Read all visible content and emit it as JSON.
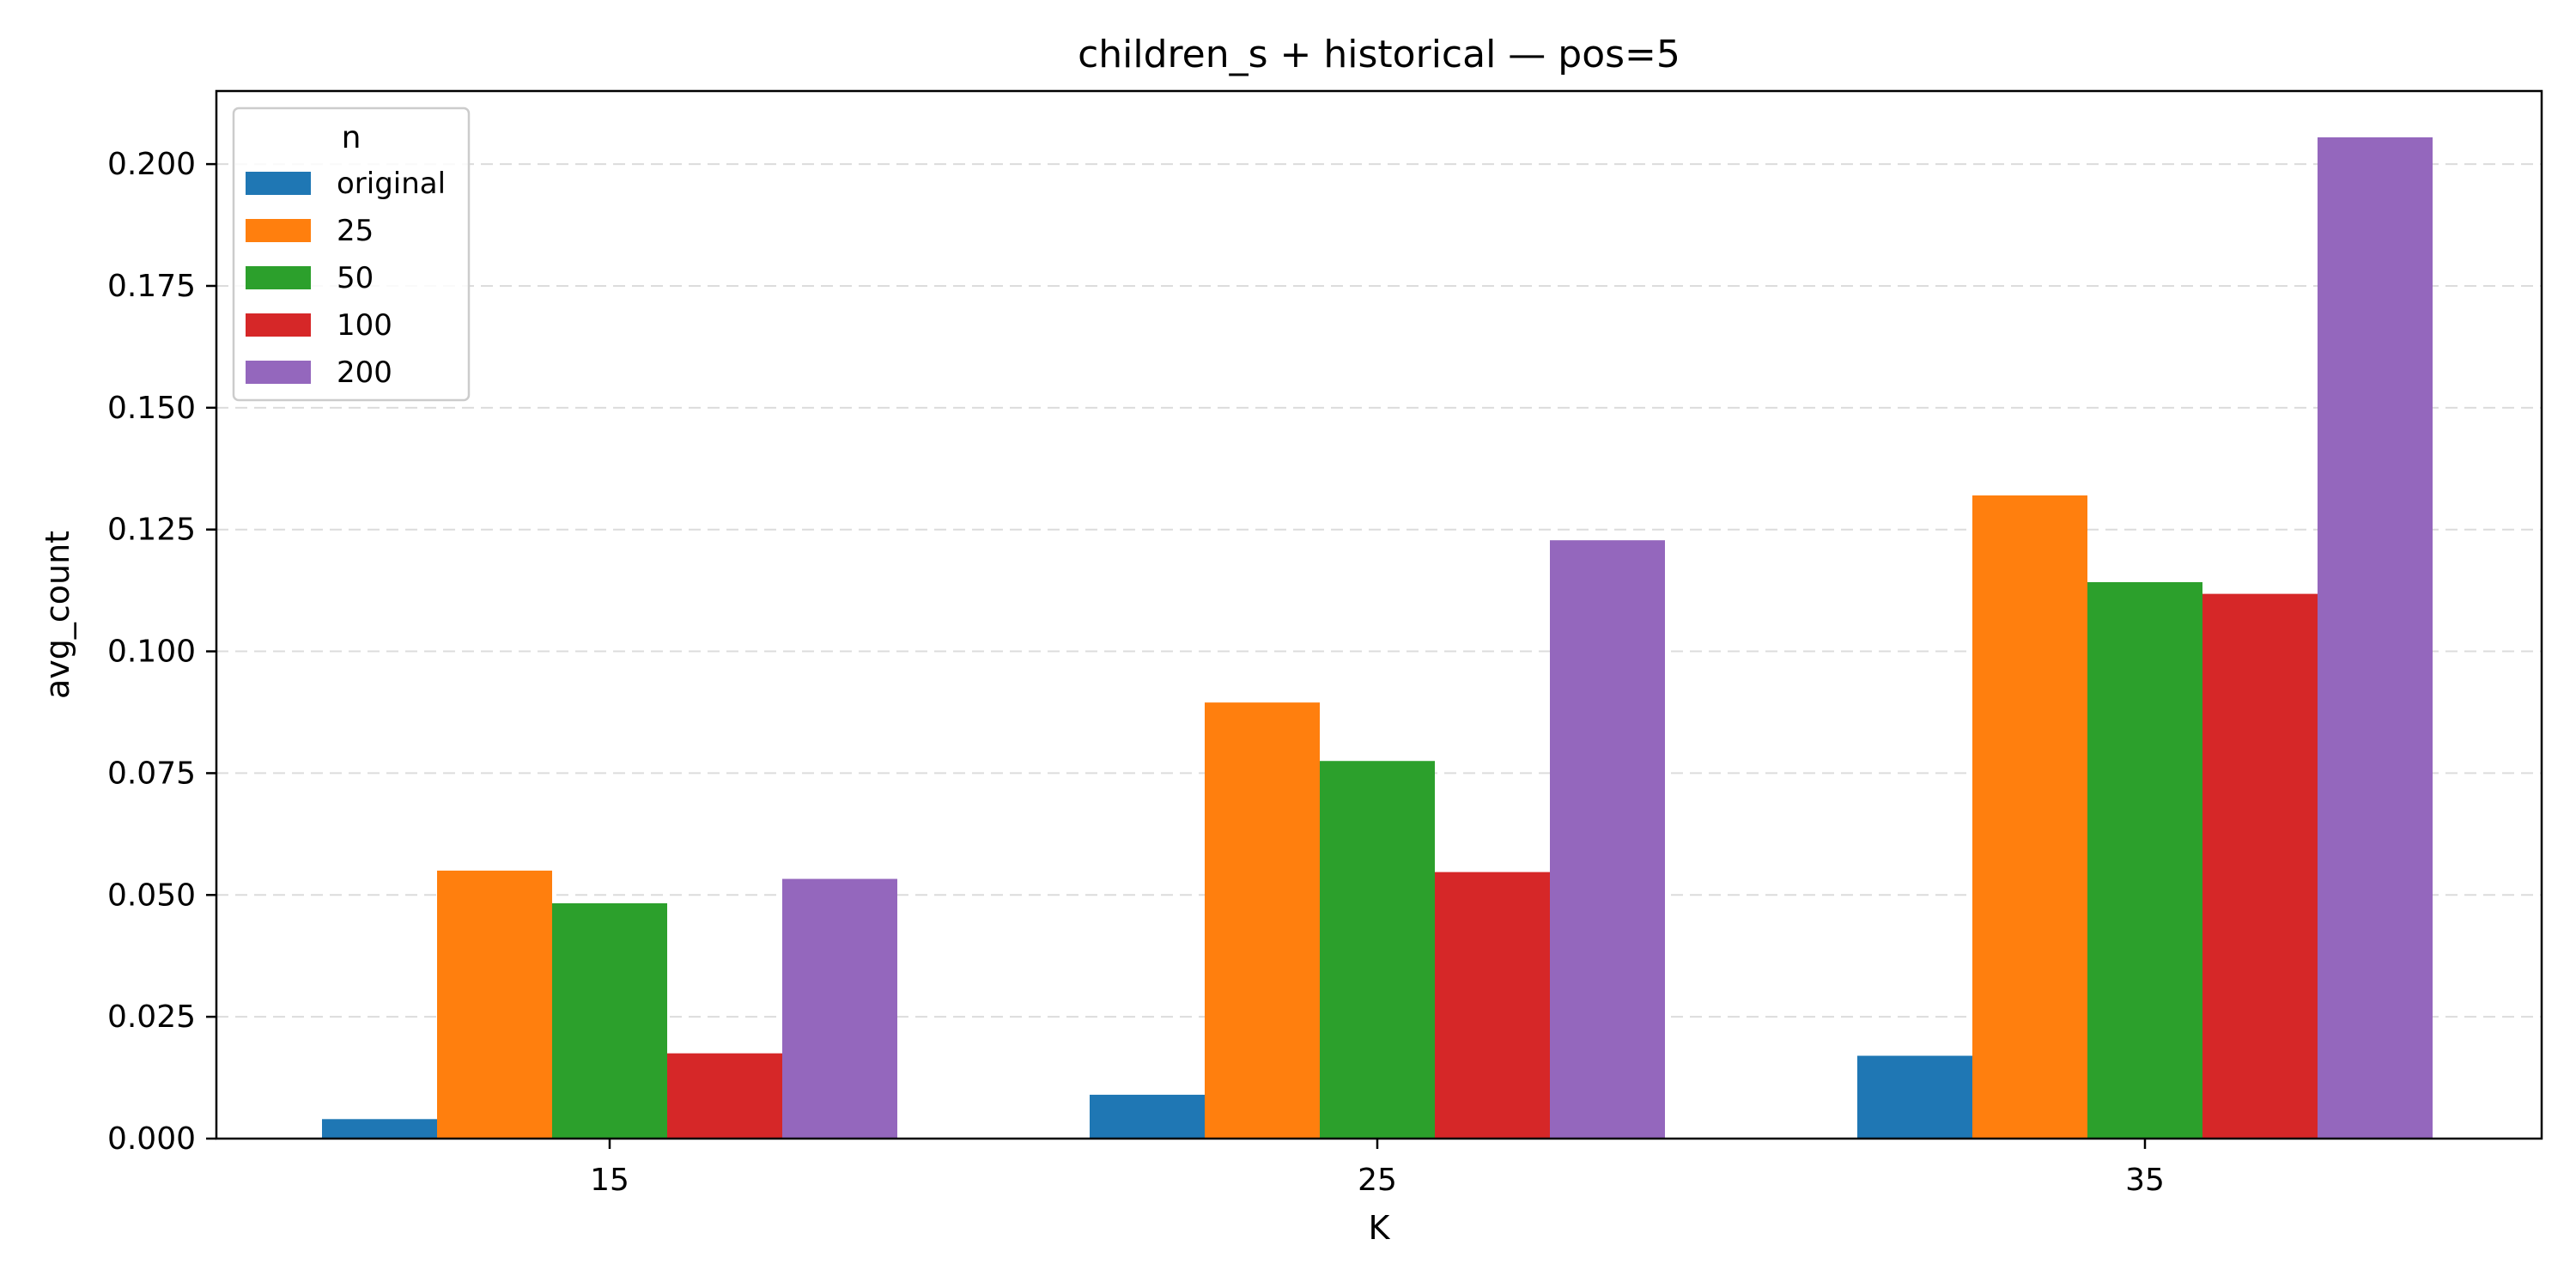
{
  "chart_data": {
    "type": "bar",
    "title": "children_s + historical — pos=5",
    "xlabel": "K",
    "ylabel": "avg_count",
    "categories": [
      "15",
      "25",
      "35"
    ],
    "ylim": [
      0,
      0.215
    ],
    "yticks": [
      "0.000",
      "0.025",
      "0.050",
      "0.075",
      "0.100",
      "0.125",
      "0.150",
      "0.175",
      "0.200"
    ],
    "ytick_values": [
      0,
      0.025,
      0.05,
      0.075,
      0.1,
      0.125,
      0.15,
      0.175,
      0.2
    ],
    "grid": "y-dashed",
    "legend": {
      "title": "n",
      "placement": "top-left"
    },
    "series": [
      {
        "name": "original",
        "color": "#1f77b4",
        "values": [
          0.004,
          0.009,
          0.017
        ]
      },
      {
        "name": "25",
        "color": "#ff7f0e",
        "values": [
          0.055,
          0.0895,
          0.132
        ]
      },
      {
        "name": "50",
        "color": "#2ca02c",
        "values": [
          0.0483,
          0.0775,
          0.1142
        ]
      },
      {
        "name": "100",
        "color": "#d62728",
        "values": [
          0.0175,
          0.0547,
          0.1118
        ]
      },
      {
        "name": "200",
        "color": "#9467bd",
        "values": [
          0.0533,
          0.1228,
          0.2055
        ]
      }
    ]
  }
}
